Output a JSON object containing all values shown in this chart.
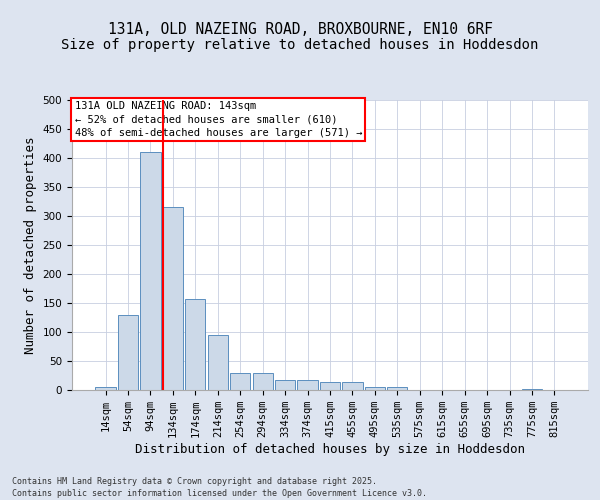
{
  "title_line1": "131A, OLD NAZEING ROAD, BROXBOURNE, EN10 6RF",
  "title_line2": "Size of property relative to detached houses in Hoddesdon",
  "xlabel": "Distribution of detached houses by size in Hoddesdon",
  "ylabel": "Number of detached properties",
  "footnote_line1": "Contains HM Land Registry data © Crown copyright and database right 2025.",
  "footnote_line2": "Contains public sector information licensed under the Open Government Licence v3.0.",
  "annotation_line1": "131A OLD NAZEING ROAD: 143sqm",
  "annotation_line2": "← 52% of detached houses are smaller (610)",
  "annotation_line3": "48% of semi-detached houses are larger (571) →",
  "bar_categories": [
    "14sqm",
    "54sqm",
    "94sqm",
    "134sqm",
    "174sqm",
    "214sqm",
    "254sqm",
    "294sqm",
    "334sqm",
    "374sqm",
    "415sqm",
    "455sqm",
    "495sqm",
    "535sqm",
    "575sqm",
    "615sqm",
    "655sqm",
    "695sqm",
    "735sqm",
    "775sqm",
    "815sqm"
  ],
  "bar_values": [
    5,
    130,
    410,
    315,
    157,
    95,
    30,
    30,
    18,
    18,
    13,
    13,
    5,
    5,
    0,
    0,
    0,
    0,
    0,
    2,
    0
  ],
  "bar_color": "#ccd9e8",
  "bar_edge_color": "#5b8fbf",
  "red_line_x": 2.575,
  "marker_color": "red",
  "ylim": [
    0,
    500
  ],
  "yticks": [
    0,
    50,
    100,
    150,
    200,
    250,
    300,
    350,
    400,
    450,
    500
  ],
  "bg_color": "#dde4f0",
  "plot_bg_color": "#ffffff",
  "grid_color": "#c8cfe0",
  "title_fontsize": 10.5,
  "axis_label_fontsize": 9,
  "tick_fontsize": 7.5,
  "annotation_fontsize": 7.5,
  "footnote_fontsize": 6.0
}
